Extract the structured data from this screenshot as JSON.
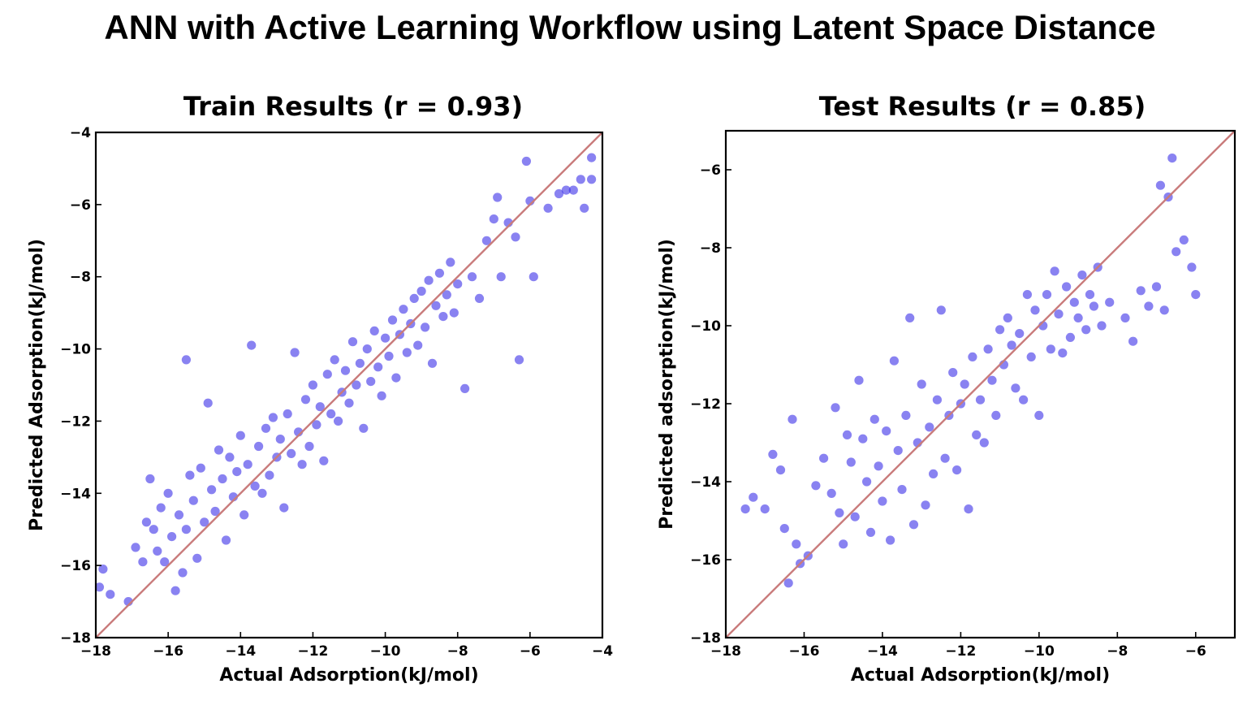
{
  "figure": {
    "title": "ANN with Active Learning Workflow using Latent Space Distance"
  },
  "chart_data": [
    {
      "type": "scatter",
      "title": "Train Results (r = 0.93)",
      "xlabel": "Actual Adsorption(kJ/mol)",
      "ylabel": "Predicted Adsorption(kJ/mol)",
      "xlim": [
        -18,
        -4
      ],
      "ylim": [
        -18,
        -4
      ],
      "xticks": [
        "−18",
        "−16",
        "−14",
        "−12",
        "−10",
        "−8",
        "−6",
        "−4"
      ],
      "yticks": [
        "−18",
        "−16",
        "−14",
        "−12",
        "−10",
        "−8",
        "−6",
        "−4"
      ],
      "r": 0.93,
      "identity_line": true,
      "point_color": "#3b2ee8",
      "line_color": "#c97b7b",
      "points": [
        [
          -17.9,
          -16.6
        ],
        [
          -17.8,
          -16.1
        ],
        [
          -17.6,
          -16.8
        ],
        [
          -17.1,
          -17.0
        ],
        [
          -16.9,
          -15.5
        ],
        [
          -16.7,
          -15.9
        ],
        [
          -16.6,
          -14.8
        ],
        [
          -16.5,
          -13.6
        ],
        [
          -16.4,
          -15.0
        ],
        [
          -16.3,
          -15.6
        ],
        [
          -16.2,
          -14.4
        ],
        [
          -16.1,
          -15.9
        ],
        [
          -16.0,
          -14.0
        ],
        [
          -15.9,
          -15.2
        ],
        [
          -15.8,
          -16.7
        ],
        [
          -15.7,
          -14.6
        ],
        [
          -15.6,
          -16.2
        ],
        [
          -15.5,
          -15.0
        ],
        [
          -15.5,
          -10.3
        ],
        [
          -15.4,
          -13.5
        ],
        [
          -15.3,
          -14.2
        ],
        [
          -15.2,
          -15.8
        ],
        [
          -15.1,
          -13.3
        ],
        [
          -15.0,
          -14.8
        ],
        [
          -14.9,
          -11.5
        ],
        [
          -14.8,
          -13.9
        ],
        [
          -14.7,
          -14.5
        ],
        [
          -14.6,
          -12.8
        ],
        [
          -14.5,
          -13.6
        ],
        [
          -14.4,
          -15.3
        ],
        [
          -14.3,
          -13.0
        ],
        [
          -14.2,
          -14.1
        ],
        [
          -14.1,
          -13.4
        ],
        [
          -14.0,
          -12.4
        ],
        [
          -13.9,
          -14.6
        ],
        [
          -13.8,
          -13.2
        ],
        [
          -13.7,
          -9.9
        ],
        [
          -13.6,
          -13.8
        ],
        [
          -13.5,
          -12.7
        ],
        [
          -13.4,
          -14.0
        ],
        [
          -13.3,
          -12.2
        ],
        [
          -13.2,
          -13.5
        ],
        [
          -13.1,
          -11.9
        ],
        [
          -13.0,
          -13.0
        ],
        [
          -12.9,
          -12.5
        ],
        [
          -12.8,
          -14.4
        ],
        [
          -12.7,
          -11.8
        ],
        [
          -12.6,
          -12.9
        ],
        [
          -12.5,
          -10.1
        ],
        [
          -12.4,
          -12.3
        ],
        [
          -12.3,
          -13.2
        ],
        [
          -12.2,
          -11.4
        ],
        [
          -12.1,
          -12.7
        ],
        [
          -12.0,
          -11.0
        ],
        [
          -11.9,
          -12.1
        ],
        [
          -11.8,
          -11.6
        ],
        [
          -11.7,
          -13.1
        ],
        [
          -11.6,
          -10.7
        ],
        [
          -11.5,
          -11.8
        ],
        [
          -11.4,
          -10.3
        ],
        [
          -11.3,
          -12.0
        ],
        [
          -11.2,
          -11.2
        ],
        [
          -11.1,
          -10.6
        ],
        [
          -11.0,
          -11.5
        ],
        [
          -10.9,
          -9.8
        ],
        [
          -10.8,
          -11.0
        ],
        [
          -10.7,
          -10.4
        ],
        [
          -10.6,
          -12.2
        ],
        [
          -10.5,
          -10.0
        ],
        [
          -10.4,
          -10.9
        ],
        [
          -10.3,
          -9.5
        ],
        [
          -10.2,
          -10.5
        ],
        [
          -10.1,
          -11.3
        ],
        [
          -10.0,
          -9.7
        ],
        [
          -9.9,
          -10.2
        ],
        [
          -9.8,
          -9.2
        ],
        [
          -9.7,
          -10.8
        ],
        [
          -9.6,
          -9.6
        ],
        [
          -9.5,
          -8.9
        ],
        [
          -9.4,
          -10.1
        ],
        [
          -9.3,
          -9.3
        ],
        [
          -9.2,
          -8.6
        ],
        [
          -9.1,
          -9.9
        ],
        [
          -9.0,
          -8.4
        ],
        [
          -8.9,
          -9.4
        ],
        [
          -8.8,
          -8.1
        ],
        [
          -8.7,
          -10.4
        ],
        [
          -8.6,
          -8.8
        ],
        [
          -8.5,
          -7.9
        ],
        [
          -8.4,
          -9.1
        ],
        [
          -8.3,
          -8.5
        ],
        [
          -8.2,
          -7.6
        ],
        [
          -8.1,
          -9.0
        ],
        [
          -8.0,
          -8.2
        ],
        [
          -7.8,
          -11.1
        ],
        [
          -7.6,
          -8.0
        ],
        [
          -7.4,
          -8.6
        ],
        [
          -7.2,
          -7.0
        ],
        [
          -7.0,
          -6.4
        ],
        [
          -6.9,
          -5.8
        ],
        [
          -6.8,
          -8.0
        ],
        [
          -6.6,
          -6.5
        ],
        [
          -6.4,
          -6.9
        ],
        [
          -6.3,
          -10.3
        ],
        [
          -6.1,
          -4.8
        ],
        [
          -6.0,
          -5.9
        ],
        [
          -5.9,
          -8.0
        ],
        [
          -5.5,
          -6.1
        ],
        [
          -5.2,
          -5.7
        ],
        [
          -5.0,
          -5.6
        ],
        [
          -4.8,
          -5.6
        ],
        [
          -4.6,
          -5.3
        ],
        [
          -4.5,
          -6.1
        ],
        [
          -4.3,
          -5.3
        ],
        [
          -4.3,
          -4.7
        ]
      ]
    },
    {
      "type": "scatter",
      "title": "Test Results (r = 0.85)",
      "xlabel": "Actual Adsorption(kJ/mol)",
      "ylabel": "Predicted adsorption(kJ/mol)",
      "xlim": [
        -18,
        -5
      ],
      "ylim": [
        -18,
        -5
      ],
      "xticks": [
        "−18",
        "−16",
        "−14",
        "−12",
        "−10",
        "−8",
        "−6"
      ],
      "yticks": [
        "−18",
        "−16",
        "−14",
        "−12",
        "−10",
        "−8",
        "−6"
      ],
      "r": 0.85,
      "identity_line": true,
      "point_color": "#3b2ee8",
      "line_color": "#c97b7b",
      "points": [
        [
          -17.5,
          -14.7
        ],
        [
          -17.3,
          -14.4
        ],
        [
          -17.0,
          -14.7
        ],
        [
          -16.8,
          -13.3
        ],
        [
          -16.6,
          -13.7
        ],
        [
          -16.5,
          -15.2
        ],
        [
          -16.3,
          -12.4
        ],
        [
          -16.2,
          -15.6
        ],
        [
          -16.1,
          -16.1
        ],
        [
          -16.4,
          -16.6
        ],
        [
          -15.9,
          -15.9
        ],
        [
          -15.7,
          -14.1
        ],
        [
          -15.5,
          -13.4
        ],
        [
          -15.3,
          -14.3
        ],
        [
          -15.2,
          -12.1
        ],
        [
          -15.1,
          -14.8
        ],
        [
          -15.0,
          -15.6
        ],
        [
          -14.9,
          -12.8
        ],
        [
          -14.8,
          -13.5
        ],
        [
          -14.7,
          -14.9
        ],
        [
          -14.6,
          -11.4
        ],
        [
          -14.5,
          -12.9
        ],
        [
          -14.4,
          -14.0
        ],
        [
          -14.3,
          -15.3
        ],
        [
          -14.2,
          -12.4
        ],
        [
          -14.1,
          -13.6
        ],
        [
          -14.0,
          -14.5
        ],
        [
          -13.9,
          -12.7
        ],
        [
          -13.8,
          -15.5
        ],
        [
          -13.7,
          -10.9
        ],
        [
          -13.6,
          -13.2
        ],
        [
          -13.5,
          -14.2
        ],
        [
          -13.4,
          -12.3
        ],
        [
          -13.3,
          -9.8
        ],
        [
          -13.2,
          -15.1
        ],
        [
          -13.1,
          -13.0
        ],
        [
          -13.0,
          -11.5
        ],
        [
          -12.9,
          -14.6
        ],
        [
          -12.8,
          -12.6
        ],
        [
          -12.7,
          -13.8
        ],
        [
          -12.6,
          -11.9
        ],
        [
          -12.5,
          -9.6
        ],
        [
          -12.4,
          -13.4
        ],
        [
          -12.3,
          -12.3
        ],
        [
          -12.2,
          -11.2
        ],
        [
          -12.1,
          -13.7
        ],
        [
          -12.0,
          -12.0
        ],
        [
          -11.9,
          -11.5
        ],
        [
          -11.8,
          -14.7
        ],
        [
          -11.7,
          -10.8
        ],
        [
          -11.6,
          -12.8
        ],
        [
          -11.5,
          -11.9
        ],
        [
          -11.4,
          -13.0
        ],
        [
          -11.3,
          -10.6
        ],
        [
          -11.2,
          -11.4
        ],
        [
          -11.1,
          -12.3
        ],
        [
          -11.0,
          -10.1
        ],
        [
          -10.9,
          -11.0
        ],
        [
          -10.8,
          -9.8
        ],
        [
          -10.7,
          -10.5
        ],
        [
          -10.6,
          -11.6
        ],
        [
          -10.5,
          -10.2
        ],
        [
          -10.4,
          -11.9
        ],
        [
          -10.3,
          -9.2
        ],
        [
          -10.2,
          -10.8
        ],
        [
          -10.1,
          -9.6
        ],
        [
          -10.0,
          -12.3
        ],
        [
          -9.9,
          -10.0
        ],
        [
          -9.8,
          -9.2
        ],
        [
          -9.7,
          -10.6
        ],
        [
          -9.6,
          -8.6
        ],
        [
          -9.5,
          -9.7
        ],
        [
          -9.4,
          -10.7
        ],
        [
          -9.3,
          -9.0
        ],
        [
          -9.2,
          -10.3
        ],
        [
          -9.1,
          -9.4
        ],
        [
          -9.0,
          -9.8
        ],
        [
          -8.9,
          -8.7
        ],
        [
          -8.8,
          -10.1
        ],
        [
          -8.7,
          -9.2
        ],
        [
          -8.6,
          -9.5
        ],
        [
          -8.5,
          -8.5
        ],
        [
          -8.4,
          -10.0
        ],
        [
          -8.2,
          -9.4
        ],
        [
          -7.8,
          -9.8
        ],
        [
          -7.6,
          -10.4
        ],
        [
          -7.4,
          -9.1
        ],
        [
          -7.2,
          -9.5
        ],
        [
          -7.0,
          -9.0
        ],
        [
          -6.9,
          -6.4
        ],
        [
          -6.8,
          -9.6
        ],
        [
          -6.7,
          -6.7
        ],
        [
          -6.6,
          -5.7
        ],
        [
          -6.5,
          -8.1
        ],
        [
          -6.3,
          -7.8
        ],
        [
          -6.1,
          -8.5
        ],
        [
          -6.0,
          -9.2
        ]
      ]
    }
  ]
}
